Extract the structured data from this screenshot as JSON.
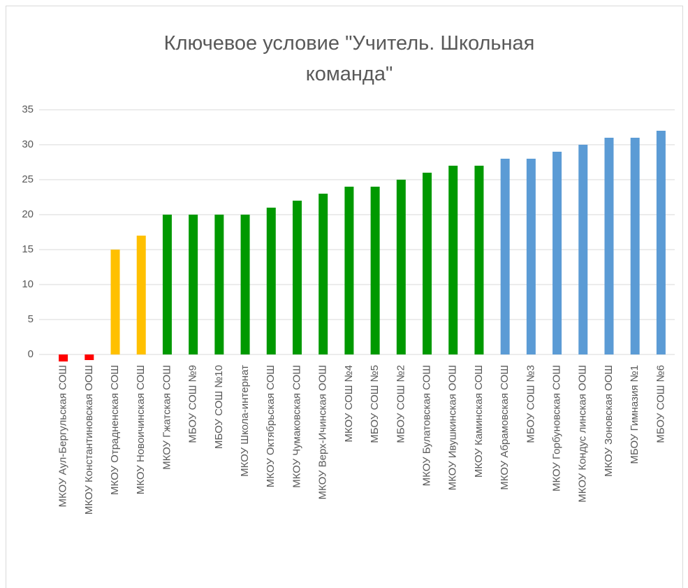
{
  "chart_data": {
    "type": "bar",
    "title": "Ключевое условие \"Учитель. Школьная команда\"",
    "categories": [
      "МКОУ Аул-Бергульская СОШ",
      "МКОУ Константиновская ООШ",
      "МКОУ Отрадненская СОШ",
      "МКОУ Новоичинская СОШ",
      "МКОУ Гжатская СОШ",
      "МБОУ СОШ №9",
      "МБОУ СОШ №10",
      "МКОУ Школа-интернат",
      "МКОУ Октябрьская СОШ",
      "МКОУ Чумаковская СОШ",
      "МКОУ Верх-Ичинская ООШ",
      "МКОУ СОШ №4",
      "МБОУ СОШ №5",
      "МБОУ СОШ №2",
      "МКОУ Булатовская СОШ",
      "МКОУ Ивушкинская ООШ",
      "МКОУ Каминская СОШ",
      "МКОУ Абрамовская СОШ",
      "МБОУ СОШ №3",
      "МКОУ Горбуновская СОШ",
      "МКОУ Кондус линская ООШ",
      "МКОУ Зоновская ООШ",
      "МБОУ Гимназия №1",
      "МБОУ СОШ №6"
    ],
    "values": [
      -1,
      -0.8,
      15,
      17,
      20,
      20,
      20,
      20,
      21,
      22,
      23,
      24,
      24,
      25,
      26,
      27,
      27,
      28,
      28,
      29,
      30,
      31,
      31,
      32
    ],
    "colors": [
      "#ff0000",
      "#ff0000",
      "#ffc000",
      "#ffc000",
      "#009900",
      "#009900",
      "#009900",
      "#009900",
      "#009900",
      "#009900",
      "#009900",
      "#009900",
      "#009900",
      "#009900",
      "#009900",
      "#009900",
      "#009900",
      "#5b9bd5",
      "#5b9bd5",
      "#5b9bd5",
      "#5b9bd5",
      "#5b9bd5",
      "#5b9bd5",
      "#5b9bd5"
    ],
    "ylim": [
      0,
      35
    ],
    "yticks": [
      0,
      5,
      10,
      15,
      20,
      25,
      30,
      35
    ],
    "grid": true
  }
}
